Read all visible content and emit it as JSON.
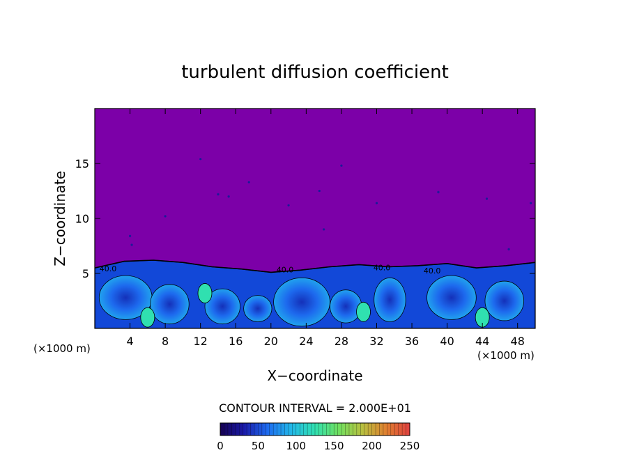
{
  "chart_data": {
    "type": "heatmap",
    "title": "turbulent diffusion coefficient",
    "xlabel": "X−coordinate",
    "ylabel": "Z−coordinate",
    "x_unit_left": "(×1000 m)",
    "x_unit_right": "(×1000 m)",
    "xlim": [
      0,
      50
    ],
    "ylim": [
      0,
      20
    ],
    "x_ticks": [
      4,
      8,
      12,
      16,
      20,
      24,
      28,
      32,
      36,
      40,
      44,
      48
    ],
    "y_ticks": [
      5,
      10,
      15
    ],
    "contour_interval_text": "CONTOUR INTERVAL = 2.000E+01",
    "contour_labels": [
      {
        "x": 1.5,
        "y": 5.2,
        "text": "40.0"
      },
      {
        "x": 21.6,
        "y": 5.1,
        "text": "40.0"
      },
      {
        "x": 32.6,
        "y": 5.3,
        "text": "40.0"
      },
      {
        "x": 38.3,
        "y": 5.0,
        "text": "40.0"
      }
    ],
    "colorbar": {
      "range": [
        0,
        250
      ],
      "ticks": [
        0,
        50,
        100,
        150,
        200,
        250
      ],
      "colors": [
        "#150050",
        "#1a1aa8",
        "#1e6cf0",
        "#22b8e8",
        "#30e0b0",
        "#70e060",
        "#b8c040",
        "#e08030",
        "#e04040"
      ]
    },
    "background_color": "#7c00a8",
    "boundary_layer_top_z": [
      5.5,
      6.1,
      6.2,
      6.0,
      5.6,
      5.4,
      5.1,
      5.3,
      5.6,
      5.8,
      5.6,
      5.7,
      5.9,
      5.5,
      5.7,
      6.0
    ]
  }
}
